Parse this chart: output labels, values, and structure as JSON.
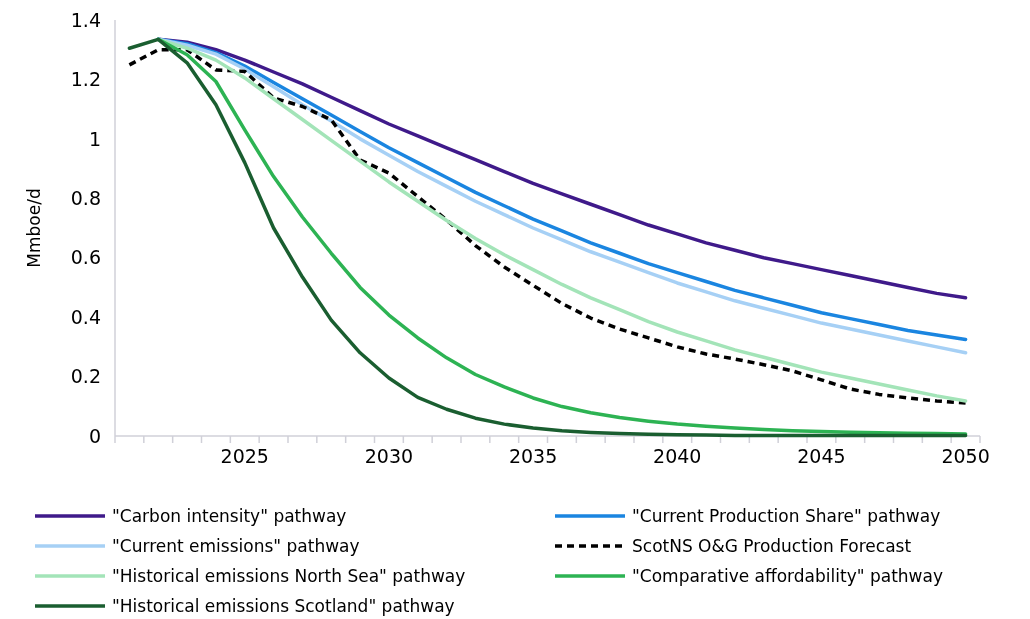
{
  "chart_data": {
    "type": "line",
    "ylabel": "Mmboe/d",
    "x": [
      2021,
      2022,
      2023,
      2024,
      2025,
      2026,
      2027,
      2028,
      2029,
      2030,
      2031,
      2032,
      2033,
      2034,
      2035,
      2036,
      2037,
      2038,
      2039,
      2040,
      2041,
      2042,
      2043,
      2044,
      2045,
      2046,
      2047,
      2048,
      2049,
      2050
    ],
    "xlim": [
      2020.5,
      2050.5
    ],
    "xticks": [
      {
        "value": 2020.5,
        "label": null
      },
      {
        "value": 2021.5,
        "label": null
      },
      {
        "value": 2022.5,
        "label": null
      },
      {
        "value": 2023.5,
        "label": null
      },
      {
        "value": 2024.5,
        "label": null
      },
      2025,
      {
        "value": 2025.5,
        "label": null
      },
      {
        "value": 2026.5,
        "label": null
      },
      {
        "value": 2027.5,
        "label": null
      },
      {
        "value": 2028.5,
        "label": null
      },
      {
        "value": 2029.5,
        "label": null
      },
      2030,
      {
        "value": 2030.5,
        "label": null
      },
      {
        "value": 2031.5,
        "label": null
      },
      {
        "value": 2032.5,
        "label": null
      },
      {
        "value": 2033.5,
        "label": null
      },
      {
        "value": 2034.5,
        "label": null
      },
      2035,
      {
        "value": 2035.5,
        "label": null
      },
      {
        "value": 2036.5,
        "label": null
      },
      {
        "value": 2037.5,
        "label": null
      },
      {
        "value": 2038.5,
        "label": null
      },
      {
        "value": 2039.5,
        "label": null
      },
      2040,
      {
        "value": 2040.5,
        "label": null
      },
      {
        "value": 2041.5,
        "label": null
      },
      {
        "value": 2042.5,
        "label": null
      },
      {
        "value": 2043.5,
        "label": null
      },
      {
        "value": 2044.5,
        "label": null
      },
      2045,
      {
        "value": 2045.5,
        "label": null
      },
      {
        "value": 2046.5,
        "label": null
      },
      {
        "value": 2047.5,
        "label": null
      },
      {
        "value": 2048.5,
        "label": null
      },
      {
        "value": 2049.5,
        "label": null
      },
      2050,
      {
        "value": 2050.5,
        "label": null
      }
    ],
    "ylim": [
      0,
      1.4
    ],
    "yticks": [
      0,
      0.2,
      0.4,
      0.6,
      0.8,
      1,
      1.2,
      1.4
    ],
    "grid": false,
    "legend": "bottom",
    "marker": "none",
    "line_style": "solid",
    "series": [
      {
        "name": "\"Carbon intensity\" pathway",
        "color": "#3f1a8a",
        "values": [
          null,
          1.335,
          1.325,
          1.3,
          1.265,
          1.225,
          1.185,
          1.14,
          1.095,
          1.05,
          1.01,
          0.97,
          0.93,
          0.89,
          0.85,
          0.815,
          0.78,
          0.745,
          0.71,
          0.68,
          0.65,
          0.625,
          0.6,
          0.58,
          0.56,
          0.54,
          0.52,
          0.5,
          0.48,
          0.465
        ]
      },
      {
        "name": "\"Current Production Share\" pathway",
        "color": "#1a85e0",
        "values": [
          null,
          1.335,
          1.32,
          1.29,
          1.245,
          1.19,
          1.135,
          1.08,
          1.025,
          0.97,
          0.92,
          0.87,
          0.82,
          0.775,
          0.73,
          0.69,
          0.65,
          0.615,
          0.58,
          0.55,
          0.52,
          0.49,
          0.465,
          0.44,
          0.415,
          0.395,
          0.375,
          0.355,
          0.34,
          0.325
        ]
      },
      {
        "name": "\"Current emissions\" pathway",
        "color": "#a6d0f5",
        "values": [
          null,
          1.335,
          1.315,
          1.285,
          1.235,
          1.175,
          1.115,
          1.06,
          1.0,
          0.945,
          0.89,
          0.84,
          0.79,
          0.745,
          0.7,
          0.66,
          0.62,
          0.585,
          0.55,
          0.515,
          0.485,
          0.455,
          0.43,
          0.405,
          0.38,
          0.36,
          0.34,
          0.32,
          0.3,
          0.28
        ]
      },
      {
        "name": "ScotNS O&G Production Forecast",
        "color": "#000000",
        "line_style": "dashed",
        "values": [
          1.249,
          1.3,
          1.3,
          1.232,
          1.227,
          1.138,
          1.109,
          1.064,
          0.929,
          0.885,
          0.806,
          0.727,
          0.641,
          0.569,
          0.507,
          0.446,
          0.397,
          0.36,
          0.33,
          0.3,
          0.276,
          0.259,
          0.24,
          0.219,
          0.189,
          0.158,
          0.14,
          0.128,
          0.118,
          0.111
        ]
      },
      {
        "name": "\"Historical emissions North Sea\" pathway",
        "color": "#a3e4b8",
        "values": [
          null,
          1.335,
          1.305,
          1.265,
          1.205,
          1.135,
          1.065,
          0.995,
          0.925,
          0.855,
          0.79,
          0.725,
          0.665,
          0.61,
          0.56,
          0.51,
          0.465,
          0.425,
          0.385,
          0.35,
          0.32,
          0.29,
          0.265,
          0.24,
          0.215,
          0.195,
          0.175,
          0.155,
          0.135,
          0.118
        ]
      },
      {
        "name": "\"Comparative affordability\" pathway",
        "color": "#2db353",
        "values": [
          null,
          1.335,
          1.283,
          1.193,
          1.03,
          0.873,
          0.737,
          0.615,
          0.5,
          0.407,
          0.33,
          0.263,
          0.207,
          0.165,
          0.128,
          0.099,
          0.078,
          0.062,
          0.05,
          0.04,
          0.033,
          0.027,
          0.022,
          0.018,
          0.015,
          0.013,
          0.011,
          0.009,
          0.008,
          0.007
        ]
      },
      {
        "name": "\"Historical emissions Scotland\" pathway",
        "color": "#1a5e30",
        "values": [
          1.305,
          1.335,
          1.256,
          1.115,
          0.92,
          0.7,
          0.535,
          0.39,
          0.28,
          0.195,
          0.13,
          0.09,
          0.06,
          0.04,
          0.027,
          0.018,
          0.012,
          0.008,
          0.006,
          0.004,
          0.003,
          0.002,
          0.002,
          0.002,
          0.002,
          0.002,
          0.002,
          0.002,
          0.002,
          0.002
        ]
      }
    ]
  }
}
